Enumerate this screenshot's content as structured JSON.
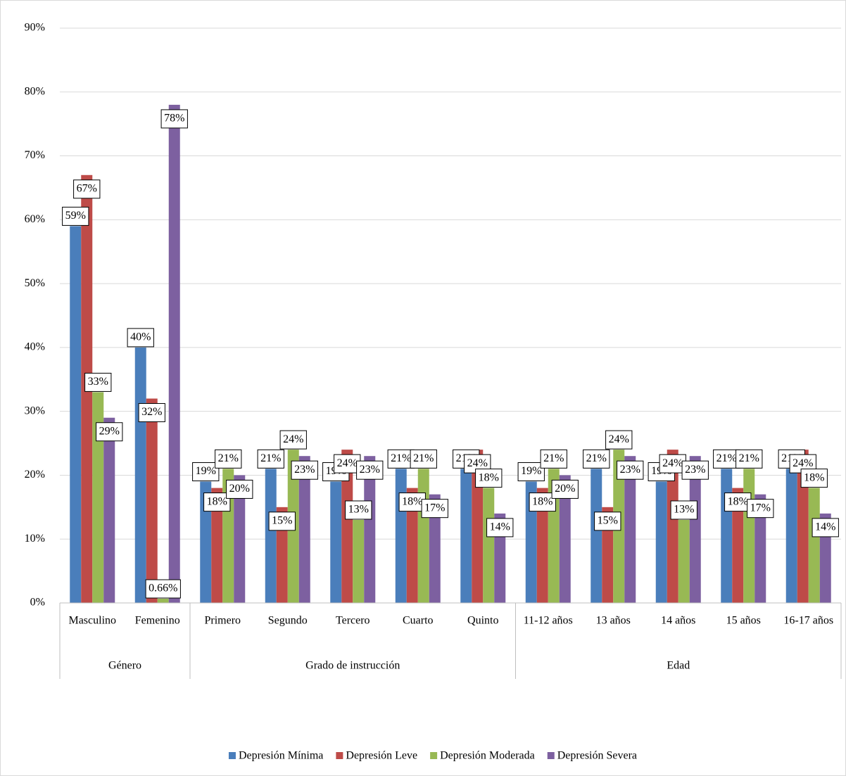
{
  "chart_data": {
    "type": "bar",
    "categories": [
      "Masculino",
      "Femenino",
      "Primero",
      "Segundo",
      "Tercero",
      "Cuarto",
      "Quinto",
      "11-12 años",
      "13 años",
      "14 años",
      "15 años",
      "16-17 años"
    ],
    "category_groups": [
      {
        "label": "Género",
        "count": 2
      },
      {
        "label": "Grado de instrucción",
        "count": 5
      },
      {
        "label": "Edad",
        "count": 5
      }
    ],
    "series": [
      {
        "name": "Depresión Mínima",
        "color": "#4a7ebb",
        "values": [
          59,
          40,
          19,
          21,
          19,
          21,
          21,
          19,
          21,
          19,
          21,
          21
        ],
        "value_labels": [
          "59%",
          "40%",
          "19%",
          "21%",
          "19%",
          "21%",
          "21%",
          "19%",
          "21%",
          "19%",
          "21%",
          "21%"
        ]
      },
      {
        "name": "Depresión Leve",
        "color": "#be4b48",
        "values": [
          67,
          32,
          18,
          15,
          24,
          18,
          24,
          18,
          15,
          24,
          18,
          24
        ],
        "value_labels": [
          "67%",
          "32%",
          "18%",
          "15%",
          "24%",
          "18%",
          "24%",
          "18%",
          "15%",
          "24%",
          "18%",
          "24%"
        ]
      },
      {
        "name": "Depresión Moderada",
        "color": "#98b954",
        "values": [
          33,
          0.66,
          21,
          24,
          13,
          21,
          18,
          21,
          24,
          13,
          21,
          18
        ],
        "value_labels": [
          "33%",
          "0.66%",
          "21%",
          "24%",
          "13%",
          "21%",
          "18%",
          "21%",
          "24%",
          "13%",
          "21%",
          "18%"
        ]
      },
      {
        "name": "Depresión Severa",
        "color": "#7d60a0",
        "values": [
          29,
          78,
          20,
          23,
          23,
          17,
          14,
          20,
          23,
          23,
          17,
          14
        ],
        "value_labels": [
          "29%",
          "78%",
          "20%",
          "23%",
          "23%",
          "17%",
          "14%",
          "20%",
          "23%",
          "23%",
          "17%",
          "14%"
        ]
      }
    ],
    "ylim": [
      0,
      90
    ],
    "yticks": [
      {
        "value": 0,
        "label": "0%"
      },
      {
        "value": 10,
        "label": "10%"
      },
      {
        "value": 20,
        "label": "20%"
      },
      {
        "value": 30,
        "label": "30%"
      },
      {
        "value": 40,
        "label": "40%"
      },
      {
        "value": 50,
        "label": "50%"
      },
      {
        "value": 60,
        "label": "60%"
      },
      {
        "value": 70,
        "label": "70%"
      },
      {
        "value": 80,
        "label": "80%"
      },
      {
        "value": 90,
        "label": "90%"
      }
    ],
    "grid": true,
    "legend": "bottom"
  }
}
